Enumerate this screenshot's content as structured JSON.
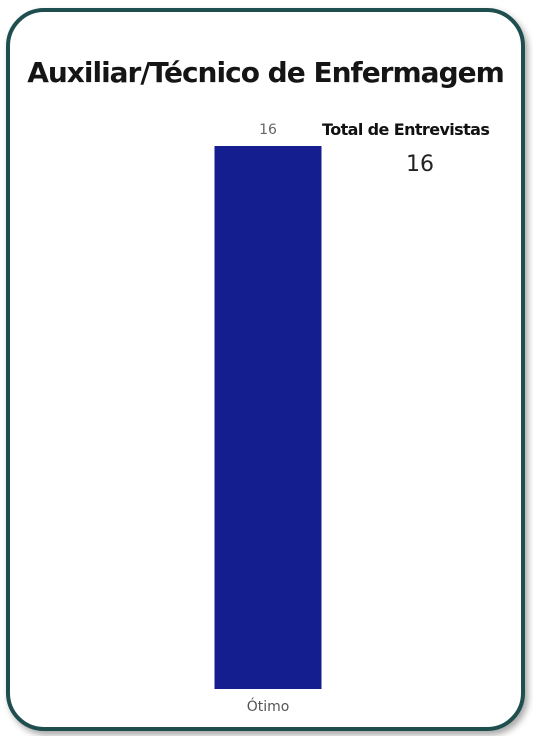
{
  "title": "Auxiliar/Técnico de Enfermagem",
  "kpi": {
    "label": "Total de Entrevistas",
    "value": "16"
  },
  "colors": {
    "bar": "#141e8f",
    "border": "#1f4e4e"
  },
  "chart_data": {
    "type": "bar",
    "categories": [
      "Ótimo"
    ],
    "values": [
      16
    ],
    "data_labels": [
      "16"
    ],
    "ylim": [
      0,
      16
    ],
    "grid": false,
    "legend": "none"
  }
}
